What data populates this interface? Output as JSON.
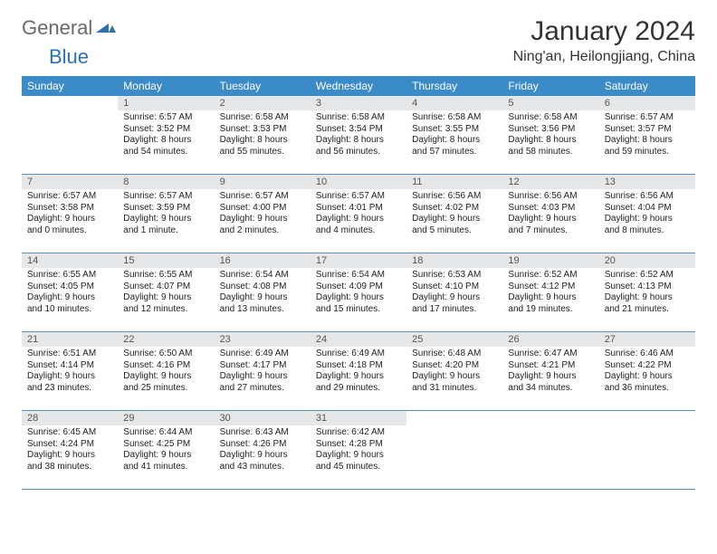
{
  "logo": {
    "part1": "General",
    "part2": "Blue"
  },
  "title": "January 2024",
  "location": "Ning'an, Heilongjiang, China",
  "colors": {
    "header_bg": "#3b8bc9",
    "daynum_bg": "#e6e7e8",
    "week_border": "#5a8fb8",
    "logo_gray": "#6a6a6a",
    "logo_blue": "#2a72b5"
  },
  "dow": [
    "Sunday",
    "Monday",
    "Tuesday",
    "Wednesday",
    "Thursday",
    "Friday",
    "Saturday"
  ],
  "weeks": [
    [
      {
        "n": "",
        "sr": "",
        "ss": "",
        "dl": ""
      },
      {
        "n": "1",
        "sr": "Sunrise: 6:57 AM",
        "ss": "Sunset: 3:52 PM",
        "dl": "Daylight: 8 hours and 54 minutes."
      },
      {
        "n": "2",
        "sr": "Sunrise: 6:58 AM",
        "ss": "Sunset: 3:53 PM",
        "dl": "Daylight: 8 hours and 55 minutes."
      },
      {
        "n": "3",
        "sr": "Sunrise: 6:58 AM",
        "ss": "Sunset: 3:54 PM",
        "dl": "Daylight: 8 hours and 56 minutes."
      },
      {
        "n": "4",
        "sr": "Sunrise: 6:58 AM",
        "ss": "Sunset: 3:55 PM",
        "dl": "Daylight: 8 hours and 57 minutes."
      },
      {
        "n": "5",
        "sr": "Sunrise: 6:58 AM",
        "ss": "Sunset: 3:56 PM",
        "dl": "Daylight: 8 hours and 58 minutes."
      },
      {
        "n": "6",
        "sr": "Sunrise: 6:57 AM",
        "ss": "Sunset: 3:57 PM",
        "dl": "Daylight: 8 hours and 59 minutes."
      }
    ],
    [
      {
        "n": "7",
        "sr": "Sunrise: 6:57 AM",
        "ss": "Sunset: 3:58 PM",
        "dl": "Daylight: 9 hours and 0 minutes."
      },
      {
        "n": "8",
        "sr": "Sunrise: 6:57 AM",
        "ss": "Sunset: 3:59 PM",
        "dl": "Daylight: 9 hours and 1 minute."
      },
      {
        "n": "9",
        "sr": "Sunrise: 6:57 AM",
        "ss": "Sunset: 4:00 PM",
        "dl": "Daylight: 9 hours and 2 minutes."
      },
      {
        "n": "10",
        "sr": "Sunrise: 6:57 AM",
        "ss": "Sunset: 4:01 PM",
        "dl": "Daylight: 9 hours and 4 minutes."
      },
      {
        "n": "11",
        "sr": "Sunrise: 6:56 AM",
        "ss": "Sunset: 4:02 PM",
        "dl": "Daylight: 9 hours and 5 minutes."
      },
      {
        "n": "12",
        "sr": "Sunrise: 6:56 AM",
        "ss": "Sunset: 4:03 PM",
        "dl": "Daylight: 9 hours and 7 minutes."
      },
      {
        "n": "13",
        "sr": "Sunrise: 6:56 AM",
        "ss": "Sunset: 4:04 PM",
        "dl": "Daylight: 9 hours and 8 minutes."
      }
    ],
    [
      {
        "n": "14",
        "sr": "Sunrise: 6:55 AM",
        "ss": "Sunset: 4:05 PM",
        "dl": "Daylight: 9 hours and 10 minutes."
      },
      {
        "n": "15",
        "sr": "Sunrise: 6:55 AM",
        "ss": "Sunset: 4:07 PM",
        "dl": "Daylight: 9 hours and 12 minutes."
      },
      {
        "n": "16",
        "sr": "Sunrise: 6:54 AM",
        "ss": "Sunset: 4:08 PM",
        "dl": "Daylight: 9 hours and 13 minutes."
      },
      {
        "n": "17",
        "sr": "Sunrise: 6:54 AM",
        "ss": "Sunset: 4:09 PM",
        "dl": "Daylight: 9 hours and 15 minutes."
      },
      {
        "n": "18",
        "sr": "Sunrise: 6:53 AM",
        "ss": "Sunset: 4:10 PM",
        "dl": "Daylight: 9 hours and 17 minutes."
      },
      {
        "n": "19",
        "sr": "Sunrise: 6:52 AM",
        "ss": "Sunset: 4:12 PM",
        "dl": "Daylight: 9 hours and 19 minutes."
      },
      {
        "n": "20",
        "sr": "Sunrise: 6:52 AM",
        "ss": "Sunset: 4:13 PM",
        "dl": "Daylight: 9 hours and 21 minutes."
      }
    ],
    [
      {
        "n": "21",
        "sr": "Sunrise: 6:51 AM",
        "ss": "Sunset: 4:14 PM",
        "dl": "Daylight: 9 hours and 23 minutes."
      },
      {
        "n": "22",
        "sr": "Sunrise: 6:50 AM",
        "ss": "Sunset: 4:16 PM",
        "dl": "Daylight: 9 hours and 25 minutes."
      },
      {
        "n": "23",
        "sr": "Sunrise: 6:49 AM",
        "ss": "Sunset: 4:17 PM",
        "dl": "Daylight: 9 hours and 27 minutes."
      },
      {
        "n": "24",
        "sr": "Sunrise: 6:49 AM",
        "ss": "Sunset: 4:18 PM",
        "dl": "Daylight: 9 hours and 29 minutes."
      },
      {
        "n": "25",
        "sr": "Sunrise: 6:48 AM",
        "ss": "Sunset: 4:20 PM",
        "dl": "Daylight: 9 hours and 31 minutes."
      },
      {
        "n": "26",
        "sr": "Sunrise: 6:47 AM",
        "ss": "Sunset: 4:21 PM",
        "dl": "Daylight: 9 hours and 34 minutes."
      },
      {
        "n": "27",
        "sr": "Sunrise: 6:46 AM",
        "ss": "Sunset: 4:22 PM",
        "dl": "Daylight: 9 hours and 36 minutes."
      }
    ],
    [
      {
        "n": "28",
        "sr": "Sunrise: 6:45 AM",
        "ss": "Sunset: 4:24 PM",
        "dl": "Daylight: 9 hours and 38 minutes."
      },
      {
        "n": "29",
        "sr": "Sunrise: 6:44 AM",
        "ss": "Sunset: 4:25 PM",
        "dl": "Daylight: 9 hours and 41 minutes."
      },
      {
        "n": "30",
        "sr": "Sunrise: 6:43 AM",
        "ss": "Sunset: 4:26 PM",
        "dl": "Daylight: 9 hours and 43 minutes."
      },
      {
        "n": "31",
        "sr": "Sunrise: 6:42 AM",
        "ss": "Sunset: 4:28 PM",
        "dl": "Daylight: 9 hours and 45 minutes."
      },
      {
        "n": "",
        "sr": "",
        "ss": "",
        "dl": ""
      },
      {
        "n": "",
        "sr": "",
        "ss": "",
        "dl": ""
      },
      {
        "n": "",
        "sr": "",
        "ss": "",
        "dl": ""
      }
    ]
  ]
}
